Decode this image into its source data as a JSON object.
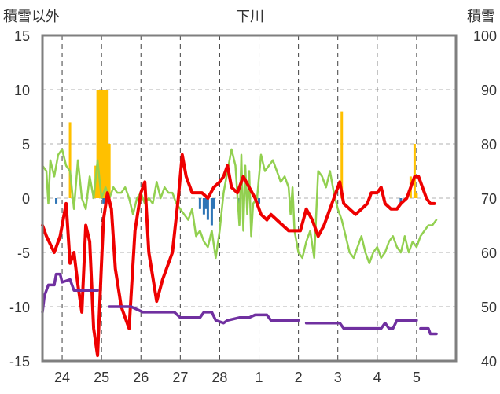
{
  "chart_data": {
    "type": "line",
    "title": "下川",
    "left_axis_label": "積雪以外",
    "right_axis_label": "積雪",
    "left_ylim": [
      -15,
      15
    ],
    "left_ticks": [
      15,
      10,
      5,
      0,
      -5,
      -10,
      -15
    ],
    "right_ylim": [
      40,
      100
    ],
    "right_ticks": [
      100,
      90,
      80,
      70,
      60,
      50,
      40
    ],
    "xlim": [
      0,
      10.5
    ],
    "x_ticks": [
      {
        "x": 0.5,
        "label": "24"
      },
      {
        "x": 1.5,
        "label": "25"
      },
      {
        "x": 2.5,
        "label": "26"
      },
      {
        "x": 3.5,
        "label": "27"
      },
      {
        "x": 4.5,
        "label": "28"
      },
      {
        "x": 5.5,
        "label": "1"
      },
      {
        "x": 6.5,
        "label": "2"
      },
      {
        "x": 7.5,
        "label": "3"
      },
      {
        "x": 8.5,
        "label": "4"
      },
      {
        "x": 9.5,
        "label": "5"
      }
    ],
    "day_separators": [
      0.5,
      1.5,
      2.5,
      3.5,
      4.5,
      5.5,
      6.5,
      7.5,
      8.5,
      9.5
    ],
    "grid": {
      "vertical": "dashed",
      "horizontal": "dashed"
    },
    "colors": {
      "temperature": "#ee0000",
      "humidity_like": "#92d050",
      "snow_depth": "#7030a0",
      "precip_bars": "#ffc000",
      "negative_bars": "#2e75b6",
      "axis": "#7f7f7f"
    },
    "series": [
      {
        "key": "red",
        "axis": "left",
        "points": [
          [
            0.0,
            -2.5
          ],
          [
            0.1,
            -3.5
          ],
          [
            0.3,
            -5.0
          ],
          [
            0.45,
            -3.5
          ],
          [
            0.6,
            -0.5
          ],
          [
            0.7,
            -6.0
          ],
          [
            0.8,
            -5.0
          ],
          [
            0.9,
            -8.0
          ],
          [
            1.0,
            -10.5
          ],
          [
            1.1,
            -2.5
          ],
          [
            1.2,
            -4.0
          ],
          [
            1.3,
            -12.0
          ],
          [
            1.4,
            -14.5
          ],
          [
            1.5,
            -6.0
          ],
          [
            1.55,
            -2.0
          ],
          [
            1.65,
            0.5
          ],
          [
            1.75,
            -1.0
          ],
          [
            1.85,
            -6.5
          ],
          [
            2.0,
            -10.0
          ],
          [
            2.2,
            -12.0
          ],
          [
            2.35,
            -3.0
          ],
          [
            2.5,
            0.5
          ],
          [
            2.6,
            1.5
          ],
          [
            2.7,
            -5.0
          ],
          [
            2.9,
            -9.5
          ],
          [
            3.05,
            -7.5
          ],
          [
            3.3,
            -5.0
          ],
          [
            3.45,
            0.0
          ],
          [
            3.55,
            4.0
          ],
          [
            3.65,
            2.0
          ],
          [
            3.8,
            0.5
          ],
          [
            4.05,
            0.5
          ],
          [
            4.2,
            0.0
          ],
          [
            4.35,
            1.0
          ],
          [
            4.5,
            1.5
          ],
          [
            4.6,
            2.0
          ],
          [
            4.7,
            3.0
          ],
          [
            4.8,
            1.0
          ],
          [
            4.95,
            0.5
          ],
          [
            5.1,
            2.0
          ],
          [
            5.25,
            1.0
          ],
          [
            5.4,
            0.0
          ],
          [
            5.55,
            -1.5
          ],
          [
            5.7,
            -2.0
          ],
          [
            5.8,
            -1.5
          ],
          [
            5.95,
            -2.0
          ],
          [
            6.1,
            -2.5
          ],
          [
            6.25,
            -3.0
          ],
          [
            6.4,
            -3.0
          ],
          [
            6.55,
            -3.0
          ],
          [
            6.7,
            -1.0
          ],
          [
            6.85,
            -2.0
          ],
          [
            7.0,
            -3.5
          ],
          [
            7.15,
            -2.5
          ],
          [
            7.3,
            -1.0
          ],
          [
            7.45,
            0.5
          ],
          [
            7.55,
            1.5
          ],
          [
            7.65,
            -0.5
          ],
          [
            7.8,
            -1.0
          ],
          [
            7.95,
            -1.5
          ],
          [
            8.1,
            -1.0
          ],
          [
            8.25,
            -0.5
          ],
          [
            8.35,
            0.5
          ],
          [
            8.5,
            0.5
          ],
          [
            8.6,
            1.0
          ],
          [
            8.7,
            -0.5
          ],
          [
            8.85,
            -1.0
          ],
          [
            9.0,
            -1.0
          ],
          [
            9.1,
            -0.5
          ],
          [
            9.25,
            0.0
          ],
          [
            9.35,
            1.0
          ],
          [
            9.45,
            2.0
          ],
          [
            9.55,
            2.0
          ],
          [
            9.65,
            1.0
          ],
          [
            9.75,
            0.0
          ],
          [
            9.85,
            -0.5
          ],
          [
            9.95,
            -0.5
          ]
        ]
      },
      {
        "key": "green",
        "axis": "left",
        "points": [
          [
            0.0,
            3.0
          ],
          [
            0.1,
            2.5
          ],
          [
            0.15,
            -0.5
          ],
          [
            0.2,
            3.5
          ],
          [
            0.3,
            2.0
          ],
          [
            0.4,
            4.0
          ],
          [
            0.5,
            4.5
          ],
          [
            0.6,
            3.0
          ],
          [
            0.7,
            2.5
          ],
          [
            0.8,
            -1.0
          ],
          [
            0.9,
            3.5
          ],
          [
            1.0,
            0.0
          ],
          [
            1.1,
            -1.0
          ],
          [
            1.2,
            2.0
          ],
          [
            1.3,
            0.0
          ],
          [
            1.4,
            3.5
          ],
          [
            1.5,
            0.0
          ],
          [
            1.6,
            1.0
          ],
          [
            1.7,
            0.0
          ],
          [
            1.8,
            1.0
          ],
          [
            1.9,
            0.5
          ],
          [
            2.0,
            0.5
          ],
          [
            2.1,
            1.0
          ],
          [
            2.2,
            0.0
          ],
          [
            2.3,
            -1.5
          ],
          [
            2.4,
            0.0
          ],
          [
            2.5,
            0.5
          ],
          [
            2.6,
            -0.5
          ],
          [
            2.7,
            0.0
          ],
          [
            2.8,
            -0.5
          ],
          [
            2.9,
            1.5
          ],
          [
            3.0,
            0.0
          ],
          [
            3.1,
            1.0
          ],
          [
            3.2,
            0.5
          ],
          [
            3.3,
            0.5
          ],
          [
            3.4,
            -0.5
          ],
          [
            3.5,
            -1.0
          ],
          [
            3.6,
            -1.5
          ],
          [
            3.7,
            -2.0
          ],
          [
            3.8,
            -1.0
          ],
          [
            3.9,
            -3.5
          ],
          [
            4.0,
            -3.0
          ],
          [
            4.1,
            -4.0
          ],
          [
            4.2,
            -4.5
          ],
          [
            4.3,
            -3.0
          ],
          [
            4.4,
            -5.5
          ],
          [
            4.5,
            -3.0
          ],
          [
            4.6,
            0.5
          ],
          [
            4.7,
            2.5
          ],
          [
            4.8,
            4.5
          ],
          [
            4.9,
            3.0
          ],
          [
            5.0,
            -2.5
          ],
          [
            5.05,
            4.0
          ],
          [
            5.1,
            -3.0
          ],
          [
            5.15,
            3.0
          ],
          [
            5.2,
            -1.5
          ],
          [
            5.25,
            2.5
          ],
          [
            5.3,
            -3.5
          ],
          [
            5.35,
            -0.5
          ],
          [
            5.45,
            0.0
          ],
          [
            5.55,
            4.0
          ],
          [
            5.65,
            2.5
          ],
          [
            5.75,
            3.0
          ],
          [
            5.85,
            3.5
          ],
          [
            5.95,
            2.5
          ],
          [
            6.05,
            1.5
          ],
          [
            6.15,
            2.0
          ],
          [
            6.25,
            1.0
          ],
          [
            6.3,
            -1.5
          ],
          [
            6.35,
            1.0
          ],
          [
            6.4,
            -3.0
          ],
          [
            6.5,
            -5.0
          ],
          [
            6.6,
            -5.5
          ],
          [
            6.7,
            -4.0
          ],
          [
            6.8,
            -3.0
          ],
          [
            6.9,
            -5.5
          ],
          [
            7.0,
            2.5
          ],
          [
            7.1,
            2.0
          ],
          [
            7.2,
            1.0
          ],
          [
            7.3,
            2.5
          ],
          [
            7.4,
            0.5
          ],
          [
            7.5,
            -1.0
          ],
          [
            7.6,
            -2.0
          ],
          [
            7.7,
            -3.5
          ],
          [
            7.8,
            -5.0
          ],
          [
            7.9,
            -5.5
          ],
          [
            8.0,
            -4.5
          ],
          [
            8.1,
            -3.5
          ],
          [
            8.2,
            -5.0
          ],
          [
            8.3,
            -6.0
          ],
          [
            8.4,
            -5.0
          ],
          [
            8.5,
            -4.5
          ],
          [
            8.6,
            -5.5
          ],
          [
            8.7,
            -5.0
          ],
          [
            8.8,
            -4.0
          ],
          [
            8.9,
            -3.5
          ],
          [
            9.0,
            -4.5
          ],
          [
            9.1,
            -5.0
          ],
          [
            9.2,
            -3.5
          ],
          [
            9.3,
            -5.0
          ],
          [
            9.4,
            -4.0
          ],
          [
            9.5,
            -4.5
          ],
          [
            9.6,
            -3.5
          ],
          [
            9.7,
            -3.0
          ],
          [
            9.8,
            -2.5
          ],
          [
            9.9,
            -2.5
          ],
          [
            10.0,
            -2.0
          ]
        ]
      },
      {
        "key": "purple",
        "axis": "right",
        "segments": [
          [
            [
              0.0,
              49
            ],
            [
              0.05,
              52
            ],
            [
              0.15,
              54
            ],
            [
              0.3,
              54
            ],
            [
              0.35,
              56
            ],
            [
              0.45,
              56
            ],
            [
              0.5,
              54.5
            ],
            [
              0.7,
              55
            ],
            [
              0.8,
              53
            ],
            [
              0.9,
              53
            ],
            [
              1.0,
              53
            ],
            [
              1.4,
              53
            ]
          ],
          [
            [
              1.7,
              50
            ],
            [
              2.25,
              50
            ],
            [
              2.55,
              49
            ],
            [
              3.35,
              49
            ],
            [
              3.5,
              48
            ],
            [
              4.0,
              48
            ],
            [
              4.1,
              49
            ],
            [
              4.3,
              49
            ],
            [
              4.4,
              47.5
            ],
            [
              4.6,
              47
            ],
            [
              4.7,
              47.5
            ],
            [
              5.0,
              48
            ],
            [
              5.25,
              48
            ],
            [
              5.4,
              48.5
            ],
            [
              5.7,
              48.5
            ],
            [
              5.8,
              47.5
            ],
            [
              6.5,
              47.5
            ]
          ],
          [
            [
              6.7,
              47
            ],
            [
              7.55,
              47
            ],
            [
              7.65,
              46
            ],
            [
              8.6,
              46
            ],
            [
              8.7,
              47
            ],
            [
              8.8,
              46
            ],
            [
              8.9,
              46
            ],
            [
              9.0,
              47.5
            ],
            [
              9.5,
              47.5
            ]
          ],
          [
            [
              9.6,
              46
            ],
            [
              9.8,
              46
            ],
            [
              9.85,
              45
            ],
            [
              10.0,
              45
            ]
          ]
        ]
      }
    ],
    "bars_positive": [
      [
        0.7,
        7
      ],
      [
        1.35,
        3
      ],
      [
        1.4,
        10
      ],
      [
        1.45,
        10
      ],
      [
        1.5,
        10
      ],
      [
        1.55,
        10
      ],
      [
        1.6,
        10
      ],
      [
        1.65,
        10
      ],
      [
        1.7,
        5
      ],
      [
        7.6,
        8
      ],
      [
        9.35,
        2
      ],
      [
        9.45,
        5
      ],
      [
        9.5,
        0.5
      ]
    ],
    "bars_negative": [
      [
        0.35,
        -0.5
      ],
      [
        0.8,
        -0.5
      ],
      [
        1.55,
        -0.5
      ],
      [
        4.0,
        -1.0
      ],
      [
        4.1,
        -1.5
      ],
      [
        4.15,
        -1.0
      ],
      [
        4.2,
        -2.0
      ],
      [
        4.3,
        -2.5
      ],
      [
        4.35,
        -1.0
      ],
      [
        5.0,
        -0.5
      ],
      [
        5.5,
        -0.5
      ],
      [
        9.1,
        -0.5
      ]
    ]
  }
}
